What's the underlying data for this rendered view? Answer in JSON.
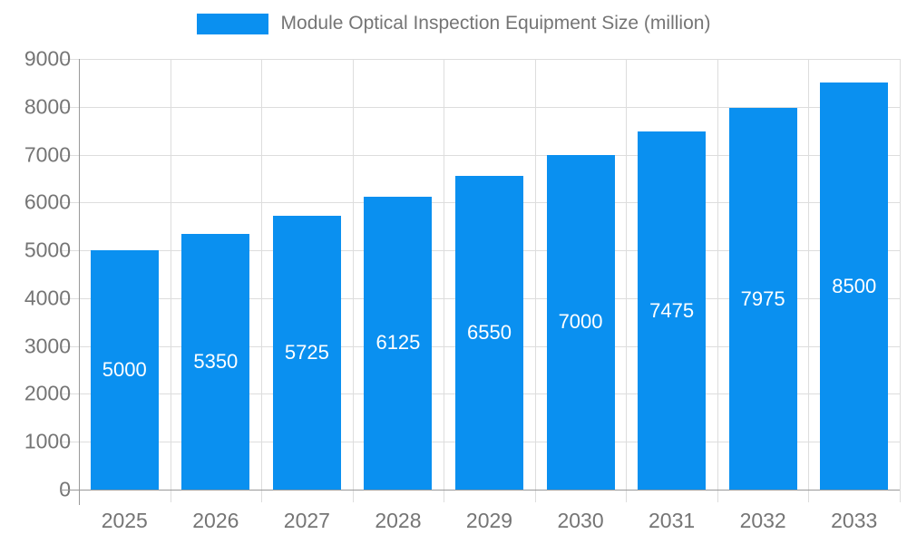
{
  "legend": {
    "label": "Module Optical Inspection Equipment Size (million)"
  },
  "colors": {
    "bar": "#0A90F0",
    "bar_label": "#FFFFFF",
    "axis_label": "#757575",
    "legend_text": "#757575",
    "grid": "#DDDDDD",
    "baseline": "#999999",
    "background": "#FFFFFF"
  },
  "chart_data": {
    "type": "bar",
    "title": "Module Optical Inspection Equipment Size (million)",
    "categories": [
      "2025",
      "2026",
      "2027",
      "2028",
      "2029",
      "2030",
      "2031",
      "2032",
      "2033"
    ],
    "values": [
      5000,
      5350,
      5725,
      6125,
      6550,
      7000,
      7475,
      7975,
      8500
    ],
    "xlabel": "",
    "ylabel": "",
    "ylim": [
      0,
      9000
    ],
    "y_ticks": [
      0,
      1000,
      2000,
      3000,
      4000,
      5000,
      6000,
      7000,
      8000,
      9000
    ],
    "grid": true,
    "legend_position": "top",
    "value_labels": "inside-center"
  }
}
